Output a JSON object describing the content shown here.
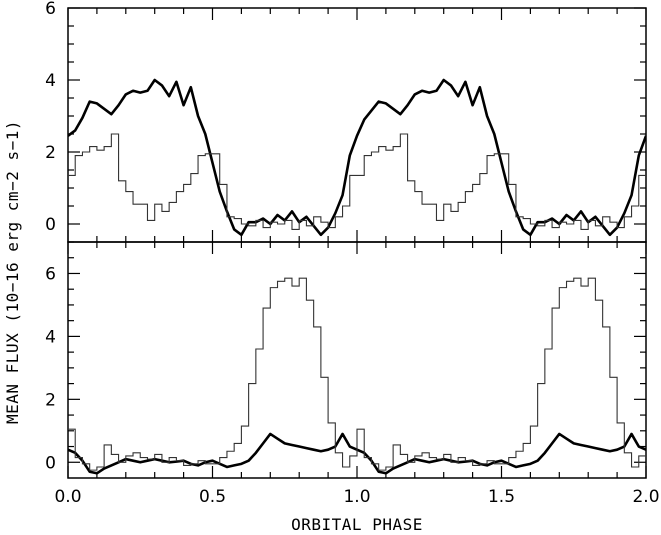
{
  "axis_titles": {
    "x": "ORBITAL PHASE",
    "y": "MEAN FLUX (10−16 erg cm−2 s−1)"
  },
  "chart_data": [
    {
      "type": "line",
      "panel": "top",
      "xlim": [
        0,
        2
      ],
      "ylim": [
        -0.5,
        6
      ],
      "y_ticks": [
        "0",
        "2",
        "4",
        "6"
      ],
      "x_ticks": [
        "0.0",
        "0.5",
        "1.0",
        "1.5",
        "2.0"
      ],
      "x_tick_labels_shown": false,
      "series": [
        {
          "style": "thick-line",
          "x": [
            0.0,
            0.025,
            0.05,
            0.075,
            0.1,
            0.125,
            0.15,
            0.175,
            0.2,
            0.225,
            0.25,
            0.275,
            0.3,
            0.325,
            0.35,
            0.375,
            0.4,
            0.425,
            0.45,
            0.475,
            0.5,
            0.525,
            0.55,
            0.575,
            0.6,
            0.625,
            0.65,
            0.675,
            0.7,
            0.725,
            0.75,
            0.775,
            0.8,
            0.825,
            0.85,
            0.875,
            0.9,
            0.925,
            0.95,
            0.975,
            1.0,
            1.025,
            1.05,
            1.075,
            1.1,
            1.125,
            1.15,
            1.175,
            1.2,
            1.225,
            1.25,
            1.275,
            1.3,
            1.325,
            1.35,
            1.375,
            1.4,
            1.425,
            1.45,
            1.475,
            1.5,
            1.525,
            1.55,
            1.575,
            1.6,
            1.625,
            1.65,
            1.675,
            1.7,
            1.725,
            1.75,
            1.775,
            1.8,
            1.825,
            1.85,
            1.875,
            1.9,
            1.925,
            1.95,
            1.975,
            2.0
          ],
          "y": [
            2.45,
            2.6,
            2.95,
            3.4,
            3.35,
            3.2,
            3.05,
            3.3,
            3.6,
            3.7,
            3.65,
            3.7,
            4.0,
            3.85,
            3.55,
            3.95,
            3.3,
            3.8,
            3.0,
            2.5,
            1.7,
            0.9,
            0.35,
            -0.15,
            -0.3,
            0.05,
            0.05,
            0.15,
            0.0,
            0.25,
            0.1,
            0.35,
            0.05,
            0.2,
            -0.05,
            -0.3,
            -0.1,
            0.3,
            0.8,
            1.9,
            2.45,
            2.9,
            3.15,
            3.4,
            3.35,
            3.2,
            3.05,
            3.3,
            3.6,
            3.7,
            3.65,
            3.7,
            4.0,
            3.85,
            3.55,
            3.95,
            3.3,
            3.8,
            3.0,
            2.5,
            1.7,
            0.9,
            0.35,
            -0.15,
            -0.3,
            0.05,
            0.05,
            0.15,
            0.0,
            0.25,
            0.1,
            0.35,
            0.05,
            0.2,
            -0.05,
            -0.3,
            -0.1,
            0.3,
            0.8,
            1.9,
            2.45
          ]
        },
        {
          "style": "thin-step",
          "x": [
            0.0,
            0.025,
            0.05,
            0.075,
            0.1,
            0.125,
            0.15,
            0.175,
            0.2,
            0.225,
            0.25,
            0.275,
            0.3,
            0.325,
            0.35,
            0.375,
            0.4,
            0.425,
            0.45,
            0.475,
            0.5,
            0.525,
            0.55,
            0.575,
            0.6,
            0.625,
            0.65,
            0.675,
            0.7,
            0.725,
            0.75,
            0.775,
            0.8,
            0.825,
            0.85,
            0.875,
            0.9,
            0.925,
            0.95,
            0.975,
            1.0,
            1.025,
            1.05,
            1.075,
            1.1,
            1.125,
            1.15,
            1.175,
            1.2,
            1.225,
            1.25,
            1.275,
            1.3,
            1.325,
            1.35,
            1.375,
            1.4,
            1.425,
            1.45,
            1.475,
            1.5,
            1.525,
            1.55,
            1.575,
            1.6,
            1.625,
            1.65,
            1.675,
            1.7,
            1.725,
            1.75,
            1.775,
            1.8,
            1.825,
            1.85,
            1.875,
            1.9,
            1.925,
            1.95,
            1.975
          ],
          "y": [
            1.35,
            1.9,
            2.0,
            2.15,
            2.05,
            2.15,
            2.5,
            1.2,
            0.9,
            0.55,
            0.55,
            0.1,
            0.55,
            0.35,
            0.6,
            0.9,
            1.1,
            1.4,
            1.9,
            1.95,
            1.95,
            1.1,
            0.2,
            0.15,
            0.0,
            -0.05,
            0.1,
            -0.1,
            0.05,
            0.0,
            0.1,
            -0.15,
            0.1,
            -0.05,
            0.2,
            0.05,
            -0.1,
            0.2,
            0.5,
            1.35,
            1.35,
            1.9,
            2.0,
            2.15,
            2.05,
            2.15,
            2.5,
            1.2,
            0.9,
            0.55,
            0.55,
            0.1,
            0.55,
            0.35,
            0.6,
            0.9,
            1.1,
            1.4,
            1.9,
            1.95,
            1.95,
            1.1,
            0.2,
            0.15,
            0.0,
            -0.05,
            0.1,
            -0.1,
            0.05,
            0.0,
            0.1,
            -0.15,
            0.1,
            -0.05,
            0.2,
            0.05,
            -0.1,
            0.2,
            0.5,
            1.35
          ]
        }
      ]
    },
    {
      "type": "line",
      "panel": "bottom",
      "xlim": [
        0,
        2
      ],
      "ylim": [
        -0.5,
        7.0
      ],
      "y_ticks": [
        "0",
        "2",
        "4",
        "6"
      ],
      "x_ticks": [
        "0.0",
        "0.5",
        "1.0",
        "1.5",
        "2.0"
      ],
      "x_tick_labels_shown": true,
      "series": [
        {
          "style": "thick-line",
          "x": [
            0.0,
            0.025,
            0.05,
            0.075,
            0.1,
            0.125,
            0.15,
            0.175,
            0.2,
            0.225,
            0.25,
            0.275,
            0.3,
            0.325,
            0.35,
            0.375,
            0.4,
            0.425,
            0.45,
            0.475,
            0.5,
            0.525,
            0.55,
            0.575,
            0.6,
            0.625,
            0.65,
            0.675,
            0.7,
            0.725,
            0.75,
            0.775,
            0.8,
            0.825,
            0.85,
            0.875,
            0.9,
            0.925,
            0.95,
            0.975,
            1.0,
            1.025,
            1.05,
            1.075,
            1.1,
            1.125,
            1.15,
            1.175,
            1.2,
            1.225,
            1.25,
            1.275,
            1.3,
            1.325,
            1.35,
            1.375,
            1.4,
            1.425,
            1.45,
            1.475,
            1.5,
            1.525,
            1.55,
            1.575,
            1.6,
            1.625,
            1.65,
            1.675,
            1.7,
            1.725,
            1.75,
            1.775,
            1.8,
            1.825,
            1.85,
            1.875,
            1.9,
            1.925,
            1.95,
            1.975,
            2.0
          ],
          "y": [
            0.4,
            0.3,
            0.05,
            -0.3,
            -0.35,
            -0.2,
            -0.1,
            0.0,
            0.1,
            0.05,
            0.0,
            0.05,
            0.1,
            0.05,
            0.0,
            0.02,
            0.05,
            -0.05,
            -0.1,
            0.0,
            0.05,
            -0.05,
            -0.15,
            -0.1,
            -0.05,
            0.05,
            0.3,
            0.6,
            0.9,
            0.75,
            0.6,
            0.55,
            0.5,
            0.45,
            0.4,
            0.35,
            0.4,
            0.5,
            0.9,
            0.5,
            0.4,
            0.3,
            0.05,
            -0.3,
            -0.35,
            -0.2,
            -0.1,
            0.0,
            0.1,
            0.05,
            0.0,
            0.05,
            0.1,
            0.05,
            0.0,
            0.02,
            0.05,
            -0.05,
            -0.1,
            0.0,
            0.05,
            -0.05,
            -0.15,
            -0.1,
            -0.05,
            0.05,
            0.3,
            0.6,
            0.9,
            0.75,
            0.6,
            0.55,
            0.5,
            0.45,
            0.4,
            0.35,
            0.4,
            0.5,
            0.9,
            0.5,
            0.4
          ]
        },
        {
          "style": "thin-step",
          "x": [
            0.0,
            0.025,
            0.05,
            0.075,
            0.1,
            0.125,
            0.15,
            0.175,
            0.2,
            0.225,
            0.25,
            0.275,
            0.3,
            0.325,
            0.35,
            0.375,
            0.4,
            0.425,
            0.45,
            0.475,
            0.5,
            0.525,
            0.55,
            0.575,
            0.6,
            0.625,
            0.65,
            0.675,
            0.7,
            0.725,
            0.75,
            0.775,
            0.8,
            0.825,
            0.85,
            0.875,
            0.9,
            0.925,
            0.95,
            0.975,
            1.0,
            1.025,
            1.05,
            1.075,
            1.1,
            1.125,
            1.15,
            1.175,
            1.2,
            1.225,
            1.25,
            1.275,
            1.3,
            1.325,
            1.35,
            1.375,
            1.4,
            1.425,
            1.45,
            1.475,
            1.5,
            1.525,
            1.55,
            1.575,
            1.6,
            1.625,
            1.65,
            1.675,
            1.7,
            1.725,
            1.75,
            1.775,
            1.8,
            1.825,
            1.85,
            1.875,
            1.9,
            1.925,
            1.95,
            1.975
          ],
          "y": [
            1.05,
            0.15,
            -0.05,
            -0.25,
            -0.15,
            0.55,
            0.25,
            0.0,
            0.2,
            0.3,
            0.15,
            0.1,
            0.25,
            0.0,
            0.15,
            0.05,
            -0.1,
            -0.05,
            0.05,
            -0.05,
            -0.05,
            0.15,
            0.35,
            0.6,
            1.15,
            2.5,
            3.6,
            4.9,
            5.55,
            5.75,
            5.85,
            5.6,
            5.85,
            5.15,
            4.3,
            2.7,
            1.25,
            0.3,
            -0.15,
            0.2,
            1.05,
            0.15,
            -0.05,
            -0.25,
            -0.15,
            0.55,
            0.25,
            0.0,
            0.2,
            0.3,
            0.15,
            0.1,
            0.25,
            0.0,
            0.15,
            0.05,
            -0.1,
            -0.05,
            0.05,
            -0.05,
            -0.05,
            0.15,
            0.35,
            0.6,
            1.15,
            2.5,
            3.6,
            4.9,
            5.55,
            5.75,
            5.85,
            5.6,
            5.85,
            5.15,
            4.3,
            2.7,
            1.25,
            0.3,
            -0.15,
            0.2
          ]
        }
      ]
    }
  ]
}
